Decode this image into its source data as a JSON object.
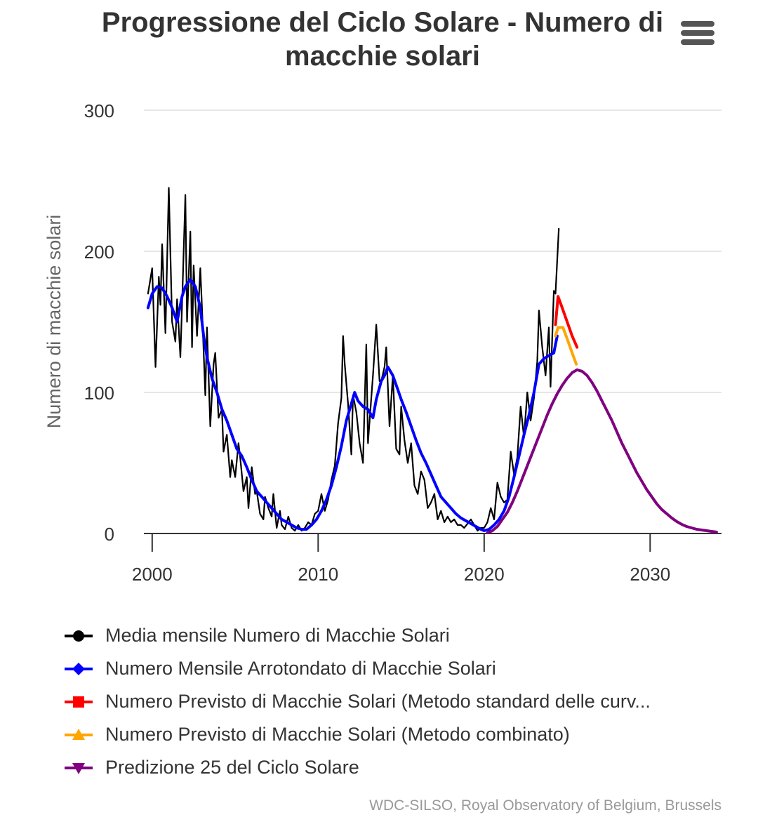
{
  "chart_data": {
    "type": "line",
    "title": "Progressione del Ciclo Solare - Numero di macchie solari",
    "xlabel": "",
    "ylabel": "Numero di macchie solari",
    "xlim": [
      1999.5,
      2034.3
    ],
    "ylim": [
      0,
      300
    ],
    "x_ticks": [
      2000,
      2010,
      2020,
      2030
    ],
    "y_ticks": [
      0,
      100,
      200,
      300
    ],
    "grid": true,
    "legend_position": "bottom",
    "series": [
      {
        "name": "Media mensile Numero di Macchie Solari",
        "color": "#000000",
        "marker": "circle",
        "x": [
          1999.75,
          2000.0,
          2000.2,
          2000.4,
          2000.5,
          2000.6,
          2000.8,
          2001.0,
          2001.2,
          2001.4,
          2001.5,
          2001.7,
          2001.8,
          2002.0,
          2002.1,
          2002.3,
          2002.4,
          2002.5,
          2002.7,
          2002.9,
          2003.0,
          2003.2,
          2003.3,
          2003.5,
          2003.7,
          2003.8,
          2004.0,
          2004.2,
          2004.3,
          2004.5,
          2004.7,
          2004.8,
          2005.0,
          2005.2,
          2005.3,
          2005.5,
          2005.7,
          2005.8,
          2006.0,
          2006.2,
          2006.3,
          2006.5,
          2006.7,
          2006.8,
          2007.0,
          2007.2,
          2007.3,
          2007.5,
          2007.7,
          2007.8,
          2008.0,
          2008.2,
          2008.4,
          2008.6,
          2008.8,
          2009.0,
          2009.2,
          2009.4,
          2009.6,
          2009.8,
          2010.0,
          2010.2,
          2010.4,
          2010.6,
          2010.8,
          2011.0,
          2011.2,
          2011.4,
          2011.5,
          2011.6,
          2011.8,
          2012.0,
          2012.1,
          2012.3,
          2012.5,
          2012.7,
          2012.9,
          2013.0,
          2013.2,
          2013.3,
          2013.5,
          2013.7,
          2013.8,
          2014.0,
          2014.1,
          2014.3,
          2014.5,
          2014.7,
          2014.9,
          2015.0,
          2015.2,
          2015.4,
          2015.6,
          2015.8,
          2016.0,
          2016.2,
          2016.4,
          2016.6,
          2016.8,
          2017.0,
          2017.2,
          2017.4,
          2017.6,
          2017.8,
          2018.0,
          2018.2,
          2018.4,
          2018.6,
          2018.8,
          2019.0,
          2019.2,
          2019.4,
          2019.6,
          2019.8,
          2020.0,
          2020.2,
          2020.4,
          2020.6,
          2020.8,
          2021.0,
          2021.2,
          2021.4,
          2021.6,
          2021.8,
          2022.0,
          2022.2,
          2022.4,
          2022.6,
          2022.8,
          2023.0,
          2023.2,
          2023.3,
          2023.5,
          2023.7,
          2023.9,
          2024.0,
          2024.2,
          2024.3,
          2024.5
        ],
        "y": [
          170,
          188,
          118,
          182,
          162,
          205,
          142,
          245,
          150,
          136,
          166,
          125,
          162,
          240,
          150,
          214,
          132,
          190,
          140,
          188,
          160,
          98,
          146,
          76,
          120,
          128,
          82,
          88,
          58,
          70,
          40,
          52,
          40,
          64,
          54,
          30,
          40,
          18,
          47,
          28,
          30,
          14,
          10,
          26,
          18,
          12,
          28,
          4,
          16,
          6,
          3,
          12,
          4,
          2,
          6,
          2,
          4,
          8,
          6,
          14,
          16,
          28,
          16,
          24,
          38,
          48,
          78,
          96,
          140,
          120,
          92,
          56,
          98,
          86,
          64,
          50,
          134,
          64,
          96,
          112,
          148,
          108,
          108,
          118,
          132,
          76,
          112,
          60,
          56,
          90,
          66,
          50,
          64,
          34,
          28,
          44,
          38,
          18,
          22,
          28,
          10,
          16,
          8,
          12,
          8,
          10,
          6,
          6,
          4,
          7,
          10,
          6,
          2,
          4,
          4,
          8,
          18,
          10,
          36,
          26,
          22,
          24,
          58,
          42,
          54,
          90,
          68,
          100,
          80,
          96,
          122,
          158,
          132,
          112,
          146,
          104,
          172,
          170,
          216
        ]
      },
      {
        "name": "Numero Mensile Arrotondato di Macchie Solari",
        "color": "#0000ff",
        "marker": "diamond",
        "x": [
          1999.75,
          2000.0,
          2000.3,
          2000.6,
          2000.9,
          2001.2,
          2001.5,
          2001.8,
          2002.0,
          2002.3,
          2002.6,
          2002.9,
          2003.1,
          2003.3,
          2003.6,
          2003.9,
          2004.2,
          2004.5,
          2004.8,
          2005.1,
          2005.4,
          2005.7,
          2006.0,
          2006.3,
          2006.6,
          2006.9,
          2007.2,
          2007.5,
          2007.8,
          2008.1,
          2008.4,
          2008.7,
          2009.0,
          2009.3,
          2009.6,
          2009.9,
          2010.2,
          2010.5,
          2010.8,
          2011.1,
          2011.4,
          2011.7,
          2012.0,
          2012.2,
          2012.4,
          2012.7,
          2013.0,
          2013.3,
          2013.5,
          2013.8,
          2014.0,
          2014.2,
          2014.5,
          2014.8,
          2015.0,
          2015.3,
          2015.6,
          2015.9,
          2016.2,
          2016.5,
          2016.8,
          2017.1,
          2017.4,
          2017.7,
          2018.0,
          2018.3,
          2018.6,
          2018.9,
          2019.2,
          2019.5,
          2019.8,
          2020.0,
          2020.3,
          2020.6,
          2020.9,
          2021.2,
          2021.5,
          2021.8,
          2022.1,
          2022.4,
          2022.7,
          2023.0,
          2023.3,
          2023.6,
          2023.9,
          2024.2,
          2024.4
        ],
        "y": [
          160,
          170,
          175,
          174,
          168,
          160,
          150,
          168,
          175,
          180,
          175,
          160,
          140,
          125,
          110,
          100,
          88,
          80,
          70,
          60,
          55,
          47,
          38,
          30,
          26,
          22,
          18,
          14,
          10,
          8,
          6,
          4,
          3,
          3,
          6,
          10,
          16,
          24,
          34,
          47,
          62,
          80,
          92,
          100,
          94,
          90,
          88,
          82,
          95,
          108,
          112,
          118,
          112,
          102,
          95,
          86,
          76,
          66,
          57,
          50,
          42,
          34,
          26,
          22,
          18,
          14,
          11,
          9,
          7,
          5,
          3,
          2,
          3,
          6,
          10,
          16,
          26,
          40,
          55,
          70,
          84,
          100,
          120,
          124,
          126,
          128,
          140
        ]
      },
      {
        "name": "Numero Previsto di Macchie Solari (Metodo standard delle curve)",
        "color": "#ff0000",
        "marker": "square",
        "x": [
          2024.3,
          2024.45,
          2024.7,
          2025.0,
          2025.3,
          2025.6
        ],
        "y": [
          148,
          168,
          160,
          150,
          140,
          132
        ]
      },
      {
        "name": "Numero Previsto di Macchie Solari (Metodo combinato)",
        "color": "#ffa500",
        "marker": "triangle",
        "x": [
          2024.3,
          2024.45,
          2024.75,
          2025.0,
          2025.3,
          2025.55
        ],
        "y": [
          140,
          146,
          146,
          138,
          128,
          120
        ]
      },
      {
        "name": "Predizione 25 del Ciclo Solare",
        "color": "#800080",
        "marker": "triangle-down",
        "x": [
          2020.2,
          2020.5,
          2020.8,
          2021.1,
          2021.4,
          2021.7,
          2022.0,
          2022.3,
          2022.6,
          2022.9,
          2023.2,
          2023.5,
          2023.8,
          2024.1,
          2024.4,
          2024.7,
          2025.0,
          2025.3,
          2025.6,
          2025.9,
          2026.2,
          2026.5,
          2026.8,
          2027.1,
          2027.4,
          2027.7,
          2028.0,
          2028.3,
          2028.6,
          2028.9,
          2029.2,
          2029.5,
          2029.8,
          2030.1,
          2030.4,
          2030.7,
          2031.0,
          2031.3,
          2031.6,
          2031.9,
          2032.2,
          2032.5,
          2032.8,
          2033.1,
          2033.4,
          2033.7,
          2034.0
        ],
        "y": [
          0.5,
          2,
          5,
          10,
          15,
          22,
          30,
          39,
          48,
          57,
          66,
          75,
          84,
          92,
          99,
          105,
          110,
          114,
          116,
          115,
          112,
          107,
          101,
          94,
          87,
          80,
          72,
          64,
          57,
          50,
          43,
          37,
          31,
          26,
          21,
          17,
          14,
          11,
          8.5,
          6.5,
          5,
          4,
          3,
          2.5,
          2,
          1.5,
          1
        ]
      }
    ]
  },
  "legend": {
    "items": [
      "Media mensile Numero di Macchie Solari",
      "Numero Mensile Arrotondato di Macchie Solari",
      "Numero Previsto di Macchie Solari (Metodo standard delle curv...",
      "Numero Previsto di Macchie Solari (Metodo combinato)",
      "Predizione 25 del Ciclo Solare"
    ]
  },
  "menu": {
    "icon": "hamburger-menu-icon"
  },
  "credits": "WDC-SILSO, Royal Observatory of Belgium, Brussels"
}
